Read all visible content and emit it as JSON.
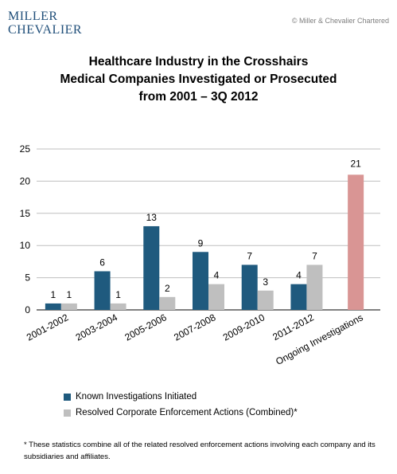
{
  "header": {
    "logo_line1": "MILLER",
    "logo_line2": "CHEVALIER",
    "copyright": "© Miller & Chevalier Chartered"
  },
  "colors": {
    "known": "#1f5a7e",
    "resolved": "#bfbfbf",
    "ongoing": "#d99594"
  },
  "chart_data": {
    "type": "bar",
    "title_lines": [
      "Healthcare Industry in the Crosshairs",
      "Medical Companies Investigated or Prosecuted",
      "from 2001 – 3Q 2012"
    ],
    "categories": [
      "2001-2002",
      "2003-2004",
      "2005-2006",
      "2007-2008",
      "2009-2010",
      "2011-2012",
      "Ongoing Investigations"
    ],
    "series": [
      {
        "name": "Known Investigations Initiated",
        "values": [
          1,
          6,
          13,
          9,
          7,
          4,
          null
        ]
      },
      {
        "name": "Resolved Corporate Enforcement Actions (Combined)*",
        "values": [
          1,
          1,
          2,
          4,
          3,
          7,
          null
        ]
      }
    ],
    "ongoing_value": 21,
    "ylim": [
      0,
      25
    ],
    "yticks": [
      0,
      5,
      10,
      15,
      20,
      25
    ],
    "grid": true,
    "legend_position": "bottom"
  },
  "footnote": "* These statistics combine all of the related resolved enforcement actions involving each company and its subsidiaries and affiliates."
}
